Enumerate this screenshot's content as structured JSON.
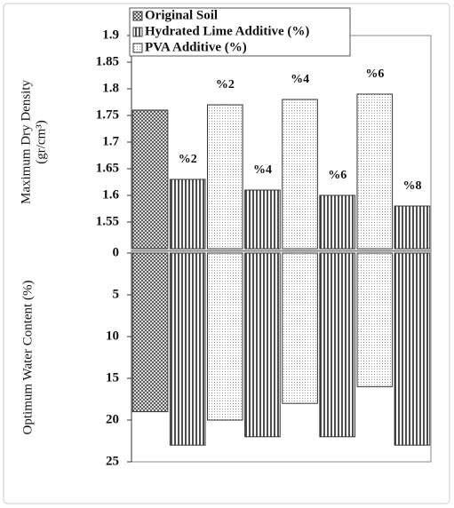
{
  "chart_data": [
    {
      "type": "bar",
      "ylabel": [
        "Maximum Dry Density",
        "(gr/cm³)"
      ],
      "categories": [
        null,
        "%2",
        "%2",
        "%4",
        "%4",
        "%6",
        "%6",
        "%8"
      ],
      "series": [
        {
          "name": "Original Soil",
          "color": "#333333",
          "pattern": "crosshatch",
          "values": [
            1.76,
            null,
            null,
            null,
            null,
            null,
            null,
            null
          ]
        },
        {
          "name": "Hydrated Lime Additive (%)",
          "color": "#333333",
          "pattern": "vertical",
          "values": [
            null,
            1.63,
            null,
            1.61,
            null,
            1.6,
            null,
            1.58
          ]
        },
        {
          "name": "PVA Additive (%)",
          "color": "#333333",
          "pattern": "dots",
          "values": [
            null,
            null,
            1.77,
            null,
            1.78,
            null,
            1.79,
            null
          ]
        }
      ],
      "ylim": [
        1.5,
        1.9
      ],
      "yticks": [
        1.55,
        1.6,
        1.65,
        1.7,
        1.75,
        1.8,
        1.85,
        1.9
      ]
    },
    {
      "type": "bar",
      "ylabel": [
        "Optimum Water Content (%)"
      ],
      "inverted": true,
      "series": [
        {
          "color": "#333333",
          "pattern": "crosshatch",
          "values": [
            19,
            null,
            null,
            null,
            null,
            null,
            null,
            null
          ]
        },
        {
          "color": "#333333",
          "pattern": "vertical",
          "values": [
            null,
            23,
            null,
            22,
            null,
            22,
            null,
            23
          ]
        },
        {
          "color": "#333333",
          "pattern": "dots",
          "values": [
            null,
            null,
            20,
            null,
            18,
            null,
            16,
            null
          ]
        }
      ],
      "ylim": [
        0,
        25
      ],
      "yticks": [
        0,
        5,
        10,
        15,
        20,
        25
      ]
    }
  ]
}
